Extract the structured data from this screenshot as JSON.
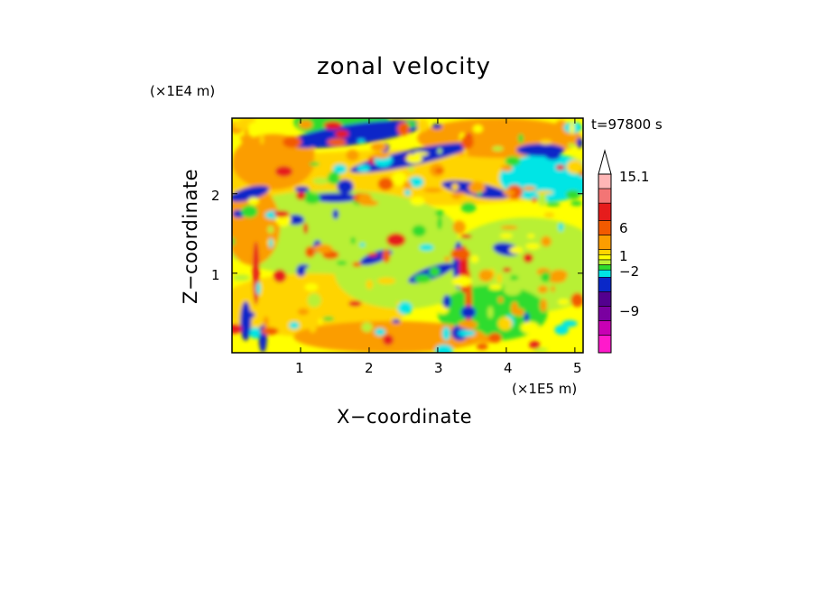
{
  "chart_data": {
    "type": "heatmap",
    "title": "zonal velocity",
    "xlabel": "X−coordinate",
    "ylabel": "Z−coordinate",
    "x_scale_label": "(×1E5 m)",
    "y_scale_label": "(×1E4 m)",
    "time_label": "t=97800 s",
    "xlim": [
      0,
      5.12
    ],
    "ylim": [
      0,
      2.95
    ],
    "xticks": [
      "1",
      "2",
      "3",
      "4",
      "5"
    ],
    "xtick_values": [
      1,
      2,
      3,
      4,
      5
    ],
    "yticks": [
      "1",
      "2"
    ],
    "ytick_values": [
      1,
      2
    ],
    "colorbar": {
      "labels": [
        "15.1",
        "6",
        "1",
        "−2",
        "−9"
      ],
      "label_values": [
        15.1,
        6,
        1,
        -2,
        -9
      ],
      "levels_top_to_bottom": [
        15.1,
        12,
        9,
        6,
        3,
        1.5,
        1,
        0.5,
        0,
        -1,
        -2,
        -5,
        -9,
        -12,
        -15.1
      ],
      "colors_top_to_bottom": [
        "#ffb6b6",
        "#f37575",
        "#e61c1c",
        "#f25a00",
        "#fb9d00",
        "#ffd400",
        "#ffff00",
        "#b8f034",
        "#2ddc2d",
        "#00e5e5",
        "#0a28c8",
        "#53008f",
        "#7a00a0",
        "#c800b4",
        "#ff1acb"
      ],
      "extend_top": true
    },
    "field_description": "Contoured zonal velocity field over x (0-5.12) and z (0-2.95); mostly yellow/orange/green with blue negative bands near z=2.5 and z=2.0, red/blue vertical feature near x=3.3"
  }
}
